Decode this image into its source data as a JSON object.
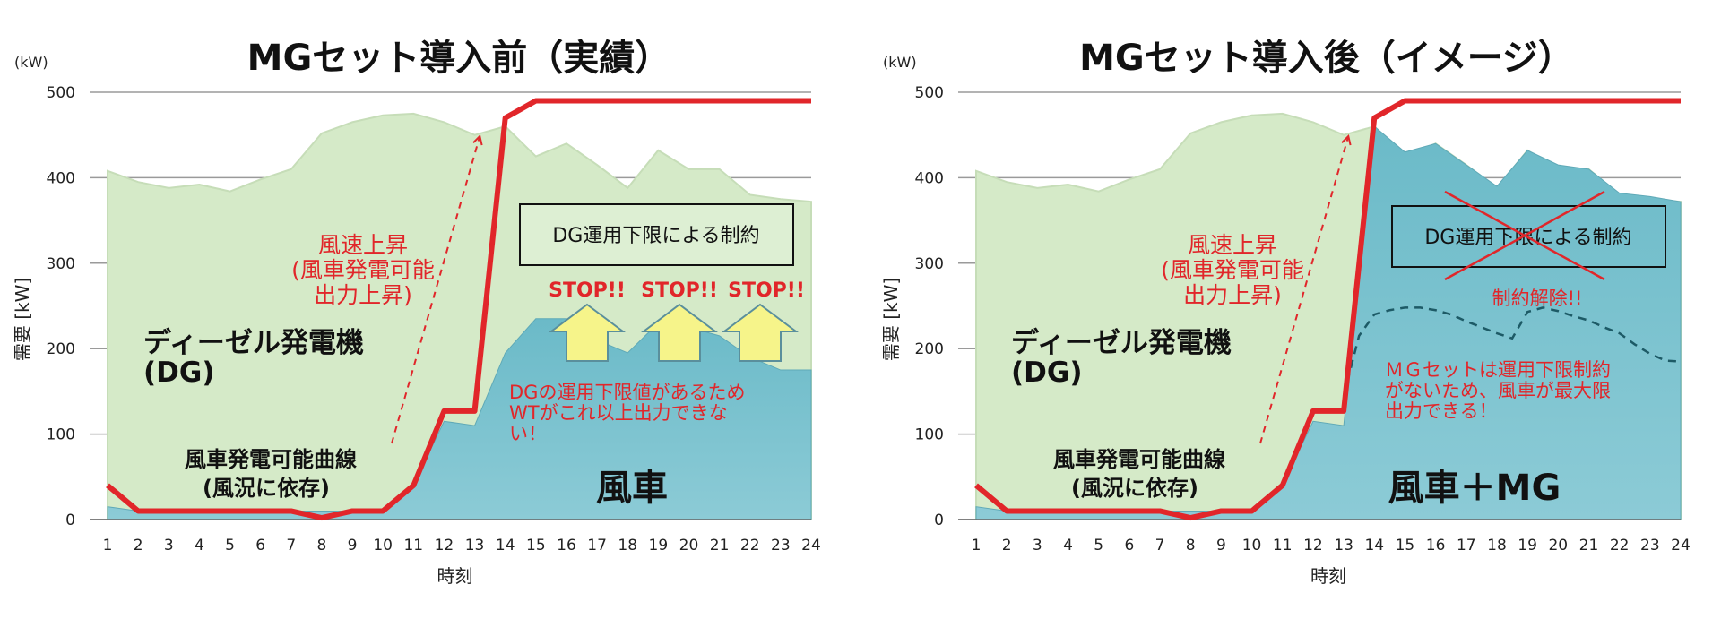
{
  "colors": {
    "demand_fill": "#d5eac8",
    "wind_fill": "#7cc3cf",
    "dg_min_line": "#e1262a",
    "arrow_fill": "#f6f48a",
    "mg_dashed": "#1d5a66",
    "note_red": "#e1262a"
  },
  "chart_data": [
    {
      "type": "area",
      "title": "MGセット導入前（実績）",
      "unit_label": "(kW)",
      "ylabel": "需要 [kW]",
      "xlabel": "時刻",
      "x": [
        1,
        2,
        3,
        4,
        5,
        6,
        7,
        8,
        9,
        10,
        11,
        12,
        13,
        14,
        15,
        16,
        17,
        18,
        19,
        20,
        21,
        22,
        23,
        24
      ],
      "ylim": [
        0,
        500
      ],
      "yticks": [
        0,
        100,
        200,
        300,
        400,
        500
      ],
      "grid": true,
      "series": [
        {
          "values": [
            408,
            395,
            388,
            392,
            384,
            398,
            410,
            452,
            465,
            473,
            475,
            465,
            450,
            460,
            425,
            440,
            415,
            388,
            432,
            410,
            410,
            380,
            375,
            372
          ]
        },
        {
          "values": [
            15,
            10,
            10,
            10,
            10,
            10,
            10,
            10,
            10,
            10,
            40,
            115,
            110,
            195,
            235,
            235,
            210,
            195,
            230,
            225,
            215,
            190,
            175,
            175
          ]
        },
        {
          "values": [
            40,
            10,
            10,
            10,
            10,
            10,
            10,
            2,
            10,
            10,
            40,
            127,
            127,
            470,
            490,
            490,
            490,
            490,
            490,
            490,
            490,
            490,
            490,
            490
          ]
        }
      ],
      "annotations": {
        "dg_label": [
          "ディーゼル発電機",
          "(DG)"
        ],
        "curve_label": [
          "風車発電可能曲線",
          "(風況に依存)"
        ],
        "wind_label": "風車",
        "wind_rise": [
          "風速上昇",
          "(風車発電可能",
          "出力上昇)"
        ],
        "constraint_box": "DG運用下限による制約",
        "stop_labels": [
          "STOP!!",
          "STOP!!",
          "STOP!!"
        ],
        "limit_note": [
          "DGの運用下限値があるため",
          "WTがこれ以上出力できな",
          "い！"
        ]
      }
    },
    {
      "type": "area",
      "title": "MGセット導入後（イメージ）",
      "unit_label": "(kW)",
      "ylabel": "需要 [kW]",
      "xlabel": "時刻",
      "x": [
        1,
        2,
        3,
        4,
        5,
        6,
        7,
        8,
        9,
        10,
        11,
        12,
        13,
        14,
        15,
        16,
        17,
        18,
        19,
        20,
        21,
        22,
        23,
        24
      ],
      "ylim": [
        0,
        500
      ],
      "yticks": [
        0,
        100,
        200,
        300,
        400,
        500
      ],
      "grid": true,
      "series": [
        {
          "values": [
            408,
            395,
            388,
            392,
            384,
            398,
            410,
            452,
            465,
            473,
            475,
            465,
            450,
            460,
            425,
            440,
            415,
            388,
            432,
            410,
            410,
            380,
            375,
            372
          ]
        },
        {
          "values": [
            15,
            10,
            10,
            10,
            10,
            10,
            10,
            10,
            10,
            10,
            40,
            115,
            110,
            460,
            430,
            440,
            415,
            390,
            432,
            415,
            410,
            382,
            378,
            372
          ]
        },
        {
          "values": [
            40,
            10,
            10,
            10,
            10,
            10,
            10,
            2,
            10,
            10,
            40,
            127,
            127,
            470,
            490,
            490,
            490,
            490,
            490,
            490,
            490,
            490,
            490,
            490
          ]
        },
        {
          "x": [
            13,
            13.5,
            14,
            14.5,
            15,
            15.5,
            16,
            16.5,
            17,
            17.5,
            18,
            18.5,
            19,
            19.5,
            20,
            20.5,
            21,
            21.5,
            22,
            22.5,
            23,
            23.5,
            24
          ],
          "values": [
            145,
            215,
            240,
            245,
            248,
            248,
            245,
            240,
            232,
            225,
            218,
            212,
            243,
            248,
            244,
            238,
            233,
            225,
            218,
            205,
            194,
            186,
            185
          ]
        }
      ],
      "annotations": {
        "dg_label": [
          "ディーゼル発電機",
          "(DG)"
        ],
        "curve_label": [
          "風車発電可能曲線",
          "(風況に依存)"
        ],
        "wind_label": "風車＋MG",
        "wind_rise": [
          "風速上昇",
          "(風車発電可能",
          "出力上昇)"
        ],
        "constraint_box": "DG運用下限による制約",
        "release": "制約解除!!",
        "mg_note": [
          "ＭＧセットは運用下限制約",
          "がないため、風車が最大限",
          "出力できる！"
        ]
      }
    }
  ]
}
